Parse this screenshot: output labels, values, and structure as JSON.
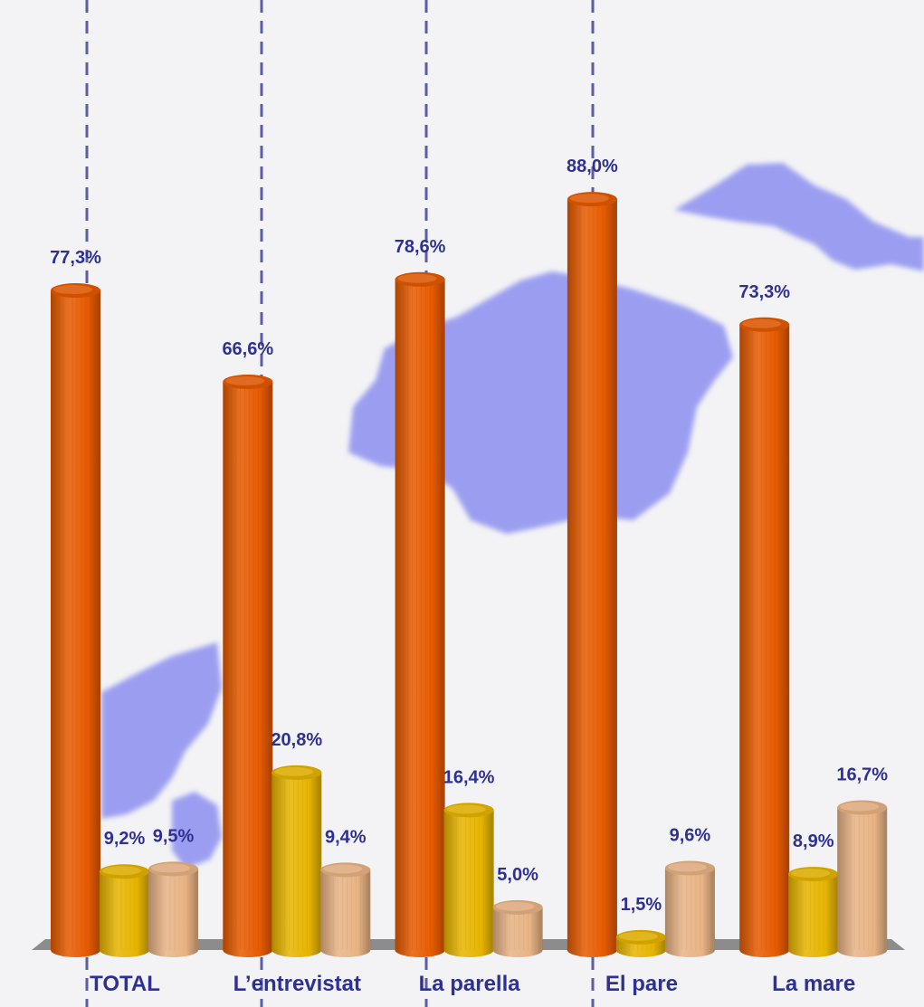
{
  "chart_data": {
    "type": "bar",
    "title": "",
    "xlabel": "",
    "ylabel": "",
    "ylim": [
      0,
      100
    ],
    "grid": false,
    "legend": "none",
    "bar_style": "3d-cylinder",
    "categories": [
      "TOTAL",
      "L’entrevistat",
      "La parella",
      "El pare",
      "La mare"
    ],
    "series": [
      {
        "values": [
          77.3,
          66.6,
          78.6,
          88.0,
          73.3
        ],
        "labels": [
          "77,3%",
          "66,6%",
          "78,6%",
          "88,0%",
          "73,3%"
        ],
        "color": "#e65a00"
      },
      {
        "values": [
          9.2,
          20.8,
          16.4,
          1.5,
          8.9
        ],
        "labels": [
          "9,2%",
          "20,8%",
          "16,4%",
          "1,5%",
          "8,9%"
        ],
        "color": "#e6b400"
      },
      {
        "values": [
          9.5,
          9.4,
          5.0,
          9.6,
          16.7
        ],
        "labels": [
          "9,5%",
          "9,4%",
          "5,0%",
          "9,6%",
          "16,7%"
        ],
        "color": "#e8b384"
      }
    ],
    "colors": {
      "label_text": "#2e3192",
      "floor": "#8c8c8c",
      "dashed_lines": "#5b5ea6",
      "background_shape": "#8c8ff0"
    }
  }
}
